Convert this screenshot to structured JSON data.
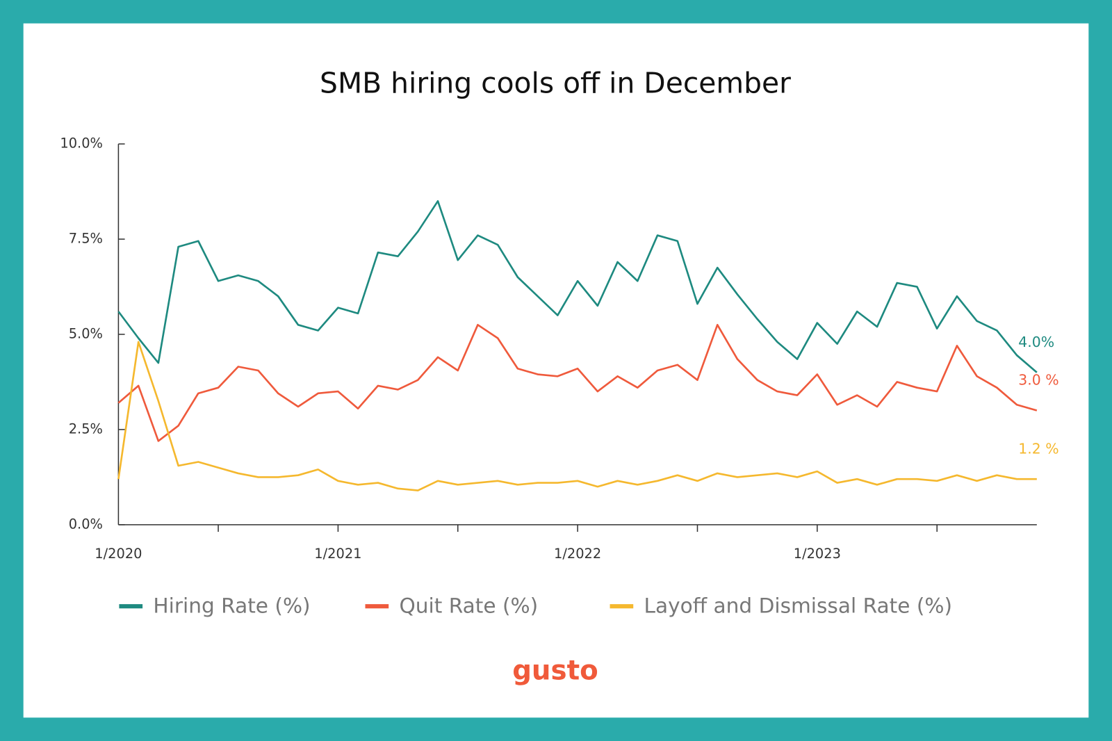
{
  "chart_data": {
    "type": "line",
    "title": "SMB hiring cools off in December",
    "brand": "gusto",
    "categories": [
      "1/2020",
      null,
      null,
      null,
      null,
      null,
      null,
      null,
      null,
      null,
      null,
      "1/2021",
      null,
      null,
      null,
      null,
      null,
      null,
      null,
      null,
      null,
      null,
      null,
      "1/2022",
      null,
      null,
      null,
      null,
      null,
      null,
      null,
      null,
      null,
      null,
      null,
      "1/2023",
      null,
      null,
      null,
      null,
      null,
      null,
      null,
      null,
      null,
      null,
      null
    ],
    "ylim": [
      0,
      10
    ],
    "yticks": [
      {
        "value": 0,
        "label": "0.0%"
      },
      {
        "value": 2.5,
        "label": "2.5%"
      },
      {
        "value": 5,
        "label": "5.0%"
      },
      {
        "value": 7.5,
        "label": "7.5%"
      },
      {
        "value": 10,
        "label": "10.0%"
      }
    ],
    "legend": "bottom",
    "series": [
      {
        "name": "Hiring Rate (%)",
        "color": "#1e8a80",
        "end_label": "4.0%",
        "values": [
          5.6,
          4.9,
          4.25,
          7.3,
          7.45,
          6.4,
          6.55,
          6.4,
          6.0,
          5.25,
          5.1,
          5.7,
          5.55,
          7.15,
          7.05,
          7.7,
          8.5,
          6.95,
          7.6,
          7.35,
          6.5,
          6.0,
          5.5,
          6.4,
          5.75,
          6.9,
          6.4,
          7.6,
          7.45,
          5.8,
          6.75,
          6.05,
          5.4,
          4.8,
          4.35,
          5.3,
          4.75,
          5.6,
          5.2,
          6.35,
          6.25,
          5.15,
          6.0,
          5.35,
          5.1,
          4.45,
          4.0
        ]
      },
      {
        "name": "Quit Rate (%)",
        "color": "#ef5a3c",
        "end_label": "3.0 %",
        "values": [
          3.2,
          3.65,
          2.2,
          2.6,
          3.45,
          3.6,
          4.15,
          4.05,
          3.45,
          3.1,
          3.45,
          3.5,
          3.05,
          3.65,
          3.55,
          3.8,
          4.4,
          4.05,
          5.25,
          4.9,
          4.1,
          3.95,
          3.9,
          4.1,
          3.5,
          3.9,
          3.6,
          4.05,
          4.2,
          3.8,
          5.25,
          4.35,
          3.8,
          3.5,
          3.4,
          3.95,
          3.15,
          3.4,
          3.1,
          3.75,
          3.6,
          3.5,
          4.7,
          3.9,
          3.6,
          3.15,
          3.0
        ]
      },
      {
        "name": "Layoff and Dismissal Rate (%)",
        "color": "#f5b82e",
        "end_label": "1.2 %",
        "values": [
          1.2,
          4.8,
          3.25,
          1.55,
          1.65,
          1.5,
          1.35,
          1.25,
          1.25,
          1.3,
          1.45,
          1.15,
          1.05,
          1.1,
          0.95,
          0.9,
          1.15,
          1.05,
          1.1,
          1.15,
          1.05,
          1.1,
          1.1,
          1.15,
          1.0,
          1.15,
          1.05,
          1.15,
          1.3,
          1.15,
          1.35,
          1.25,
          1.3,
          1.35,
          1.25,
          1.4,
          1.1,
          1.2,
          1.05,
          1.2,
          1.2,
          1.15,
          1.3,
          1.15,
          1.3,
          1.2,
          1.2
        ]
      }
    ]
  }
}
